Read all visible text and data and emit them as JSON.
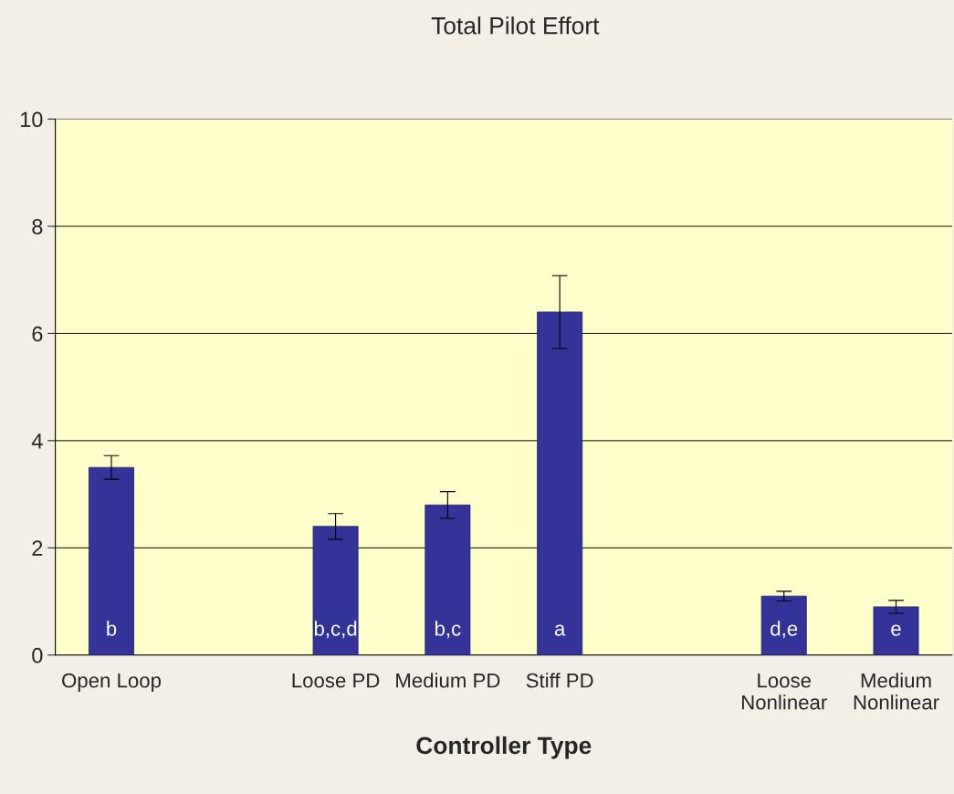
{
  "chart_data": {
    "type": "bar",
    "title": "Total Pilot Effort",
    "xlabel": "Controller Type",
    "categories": [
      "Open Loop",
      null,
      "Loose PD",
      "Medium PD",
      "Stiff PD",
      null,
      "Loose\nNonlinear",
      "Medium\nNonlinear"
    ],
    "series": [
      {
        "color": "#333399",
        "values": [
          3.5,
          null,
          2.4,
          2.8,
          6.4,
          null,
          1.1,
          0.9
        ],
        "errors": [
          0.22,
          null,
          0.24,
          0.25,
          0.68,
          null,
          0.09,
          0.12
        ],
        "value_labels": [
          "b",
          null,
          "b,c,d",
          "b,c",
          "a",
          null,
          "d,e",
          "e"
        ]
      }
    ],
    "ylim": [
      0,
      10
    ],
    "yticks": [
      0,
      2,
      4,
      6,
      8,
      10
    ],
    "grid": "y"
  }
}
